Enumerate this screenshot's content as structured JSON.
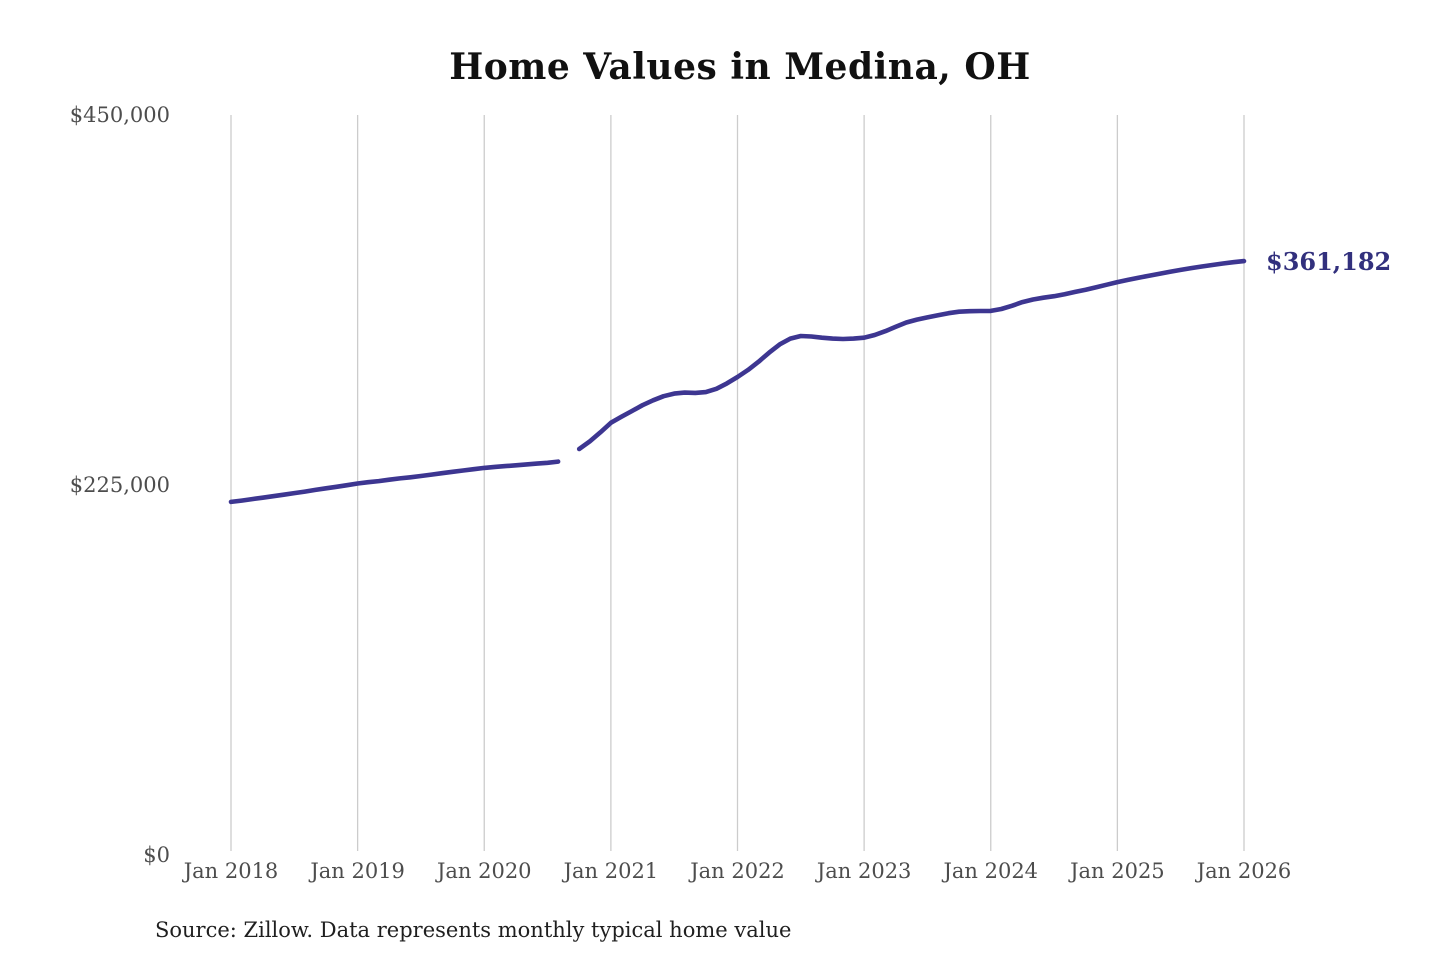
{
  "title": "Home Values in Medina, OH",
  "annotation": {
    "last_value_label": "$361,182"
  },
  "source_note": "Source: Zillow. Data represents monthly typical home value",
  "colors": {
    "line": "#3d3691",
    "end_label": "#32307d",
    "gridline": "#cccccc",
    "tick_text": "#4d4d4d",
    "title_text": "#111111"
  },
  "chart_data": {
    "type": "line",
    "title": "Home Values in Medina, OH",
    "series_name": "Monthly typical home value",
    "ylim": [
      0,
      450000
    ],
    "grid": "vertical-only",
    "legend": "none",
    "gap_months": [
      "2020-09"
    ],
    "last_point": {
      "month": "2026-01",
      "value": 361182,
      "label": "$361,182"
    },
    "y_ticks": [
      {
        "label": "$450,000",
        "value": 450000
      },
      {
        "label": "$225,000",
        "value": 225000
      },
      {
        "label": "$0",
        "value": 0
      }
    ],
    "x_ticks": [
      "Jan 2018",
      "Jan 2019",
      "Jan 2020",
      "Jan 2021",
      "Jan 2022",
      "Jan 2023",
      "Jan 2024",
      "Jan 2025",
      "Jan 2026"
    ],
    "x": [
      "2018-01",
      "2018-02",
      "2018-03",
      "2018-04",
      "2018-05",
      "2018-06",
      "2018-07",
      "2018-08",
      "2018-09",
      "2018-10",
      "2018-11",
      "2018-12",
      "2019-01",
      "2019-02",
      "2019-03",
      "2019-04",
      "2019-05",
      "2019-06",
      "2019-07",
      "2019-08",
      "2019-09",
      "2019-10",
      "2019-11",
      "2019-12",
      "2020-01",
      "2020-02",
      "2020-03",
      "2020-04",
      "2020-05",
      "2020-06",
      "2020-07",
      "2020-08",
      "2020-09",
      "2020-10",
      "2020-11",
      "2020-12",
      "2021-01",
      "2021-02",
      "2021-03",
      "2021-04",
      "2021-05",
      "2021-06",
      "2021-07",
      "2021-08",
      "2021-09",
      "2021-10",
      "2021-11",
      "2021-12",
      "2022-01",
      "2022-02",
      "2022-03",
      "2022-04",
      "2022-05",
      "2022-06",
      "2022-07",
      "2022-08",
      "2022-09",
      "2022-10",
      "2022-11",
      "2022-12",
      "2023-01",
      "2023-02",
      "2023-03",
      "2023-04",
      "2023-05",
      "2023-06",
      "2023-07",
      "2023-08",
      "2023-09",
      "2023-10",
      "2023-11",
      "2023-12",
      "2024-01",
      "2024-02",
      "2024-03",
      "2024-04",
      "2024-05",
      "2024-06",
      "2024-07",
      "2024-08",
      "2024-09",
      "2024-10",
      "2024-11",
      "2024-12",
      "2025-01",
      "2025-02",
      "2025-03",
      "2025-04",
      "2025-05",
      "2025-06",
      "2025-07",
      "2025-08",
      "2025-09",
      "2025-10",
      "2025-11",
      "2025-12",
      "2026-01"
    ],
    "values": [
      214700,
      215500,
      216400,
      217300,
      218200,
      219100,
      220100,
      221000,
      222000,
      223000,
      223900,
      224900,
      225900,
      226700,
      227400,
      228200,
      229000,
      229700,
      230500,
      231300,
      232200,
      233000,
      233800,
      234600,
      235400,
      236000,
      236500,
      237000,
      237500,
      238000,
      238500,
      239200,
      null,
      246900,
      251500,
      257000,
      262800,
      266500,
      270000,
      273500,
      276500,
      279000,
      280600,
      281200,
      281000,
      281500,
      283500,
      286800,
      290700,
      295000,
      300000,
      305500,
      310500,
      314000,
      315600,
      315300,
      314600,
      314000,
      313800,
      314000,
      314600,
      316200,
      318500,
      321200,
      323800,
      325600,
      326900,
      328200,
      329500,
      330400,
      330700,
      330800,
      330900,
      332000,
      334000,
      336200,
      337800,
      338900,
      339800,
      341000,
      342400,
      343700,
      345200,
      346800,
      348400,
      349700,
      351000,
      352300,
      353500,
      354700,
      355800,
      356900,
      357900,
      358800,
      359700,
      360500,
      361182
    ]
  }
}
